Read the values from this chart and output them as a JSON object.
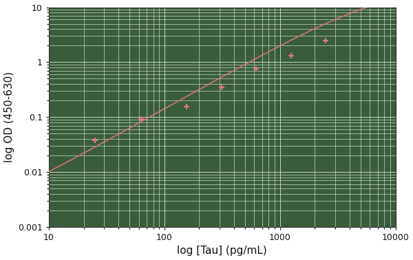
{
  "title": "",
  "xlabel": "log [Tau] (pg/mL)",
  "ylabel": "log OD (450-630)",
  "figure_bg": "#ffffff",
  "axes_bg": "#3a5c3c",
  "grid_color": "#c8d8c8",
  "line_color": "#e07878",
  "marker_color": "#e07878",
  "xlim": [
    10,
    10000
  ],
  "ylim": [
    0.001,
    10
  ],
  "data_points_x": [
    25.0,
    62.5,
    156.25,
    312.5,
    625.0,
    1250.0,
    2500.0
  ],
  "data_points_y": [
    0.038,
    0.092,
    0.155,
    0.345,
    0.75,
    1.3,
    2.5
  ],
  "error_bars_y": [
    0.004,
    0.005,
    0.012,
    0.022,
    0.035,
    0.06,
    0.15
  ],
  "fit_4pl_a": 0.0008,
  "fit_4pl_d": 25.0,
  "fit_4pl_c": 8000.0,
  "fit_4pl_b": 1.18,
  "axis_label_fontsize": 11,
  "tick_label_fontsize": 9,
  "label_color": "#111111"
}
